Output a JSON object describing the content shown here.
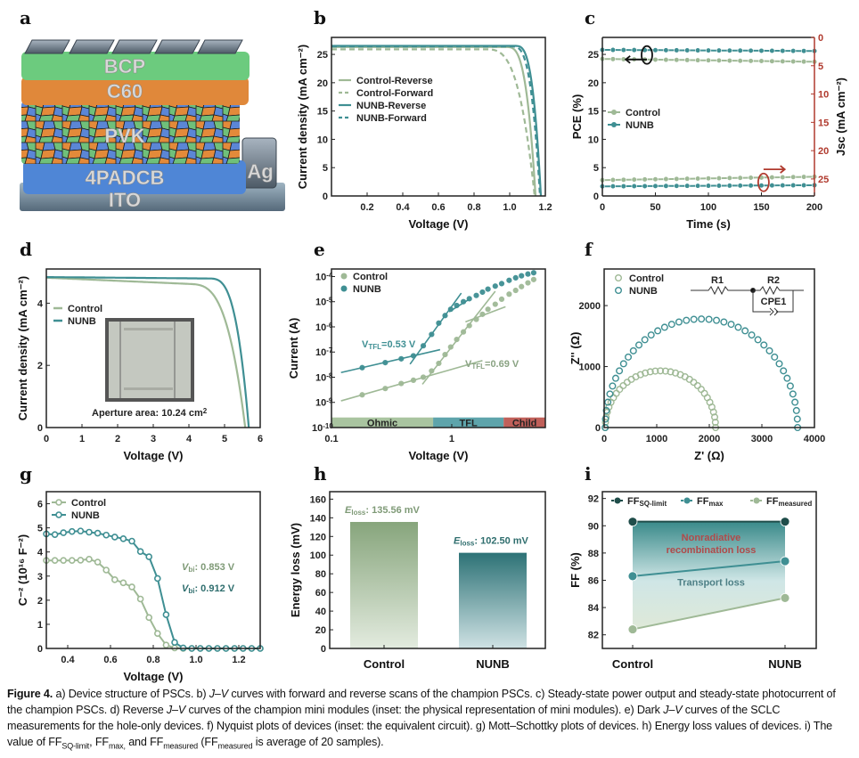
{
  "colors": {
    "control": "#9fb996",
    "nunb": "#3f8f93",
    "dark_nunb": "#2f6e6e",
    "red_axis": "#b03a2e",
    "ohmic": "#a9c4a0",
    "tfl": "#5ea4ab",
    "child": "#c0605a",
    "sq": "#1f4d4a"
  },
  "panels": {
    "a": {
      "letter": "a",
      "layers": [
        "BCP",
        "C60",
        "PVK",
        "4PADCB",
        "ITO",
        "Ag"
      ]
    },
    "b": {
      "letter": "b"
    },
    "c": {
      "letter": "c"
    },
    "d": {
      "letter": "d",
      "inset_caption": "Aperture area: 10.24 cm",
      "inset_caption_sup": "2"
    },
    "e": {
      "letter": "e"
    },
    "f": {
      "letter": "f",
      "circuit": {
        "r1": "R1",
        "r2": "R2",
        "cpe": "CPE1"
      }
    },
    "g": {
      "letter": "g"
    },
    "h": {
      "letter": "h"
    },
    "i": {
      "letter": "i"
    }
  },
  "chart_data": [
    {
      "id": "b",
      "type": "line",
      "xlabel": "Voltage (V)",
      "ylabel": "Current density (mA cm⁻²)",
      "xlim": [
        0,
        1.2
      ],
      "ylim": [
        0,
        28
      ],
      "xticks": [
        0.2,
        0.4,
        0.6,
        0.8,
        1.0,
        1.2
      ],
      "xtick_labels": [
        "0.2",
        "0.4",
        "0.6",
        "0.8",
        "1.0",
        "1.2"
      ],
      "yticks": [
        0,
        5,
        10,
        15,
        20,
        25
      ],
      "legend_position": "upper-left",
      "series": [
        {
          "name": "Control-Reverse",
          "style": "solid",
          "color": "control",
          "jsc": 26.3,
          "voc": 1.145,
          "knee": 0.98
        },
        {
          "name": "Control-Forward",
          "style": "dashed",
          "color": "control",
          "jsc": 25.9,
          "voc": 1.14,
          "knee": 0.86
        },
        {
          "name": "NUNB-Reverse",
          "style": "solid",
          "color": "nunb",
          "jsc": 26.5,
          "voc": 1.175,
          "knee": 1.03
        },
        {
          "name": "NUNB-Forward",
          "style": "dashed",
          "color": "nunb",
          "jsc": 26.4,
          "voc": 1.17,
          "knee": 1.01
        }
      ]
    },
    {
      "id": "c",
      "type": "line",
      "xlabel": "Time (s)",
      "ylabel": "PCE (%)",
      "ylabel_right": "Jsc (mA cm⁻²)",
      "xlim": [
        0,
        200
      ],
      "ylim": [
        0,
        28
      ],
      "ylim_right": [
        28,
        0
      ],
      "xticks": [
        0,
        50,
        100,
        150,
        200
      ],
      "yticks": [
        0,
        5,
        10,
        15,
        20,
        25
      ],
      "yticks_right": [
        0,
        5,
        10,
        15,
        20,
        25
      ],
      "legend_position": "middle-left",
      "series": [
        {
          "name": "Control",
          "axis": "left",
          "color": "control",
          "start": 24.2,
          "end": 23.7
        },
        {
          "name": "NUNB",
          "axis": "left",
          "color": "nunb",
          "start": 25.8,
          "end": 25.6
        },
        {
          "name": "Control",
          "axis": "right",
          "color": "control",
          "start": 25.2,
          "end": 24.6
        },
        {
          "name": "NUNB",
          "axis": "right",
          "color": "nunb",
          "start": 26.3,
          "end": 26.1
        }
      ]
    },
    {
      "id": "d",
      "type": "line",
      "xlabel": "Voltage (V)",
      "ylabel": "Current density (mA cm⁻²)",
      "xlim": [
        0,
        6
      ],
      "ylim": [
        0,
        5.1
      ],
      "xticks": [
        0,
        1,
        2,
        3,
        4,
        5,
        6
      ],
      "yticks": [
        0,
        2,
        4
      ],
      "legend_position": "upper-left",
      "series": [
        {
          "name": "Control",
          "color": "control",
          "jsc": 4.82,
          "voc": 5.58,
          "knee": 4.0,
          "slope": 0.05
        },
        {
          "name": "NUNB",
          "color": "nunb",
          "jsc": 4.84,
          "voc": 5.68,
          "knee": 4.55,
          "slope": 0.01
        }
      ]
    },
    {
      "id": "e",
      "type": "scatter",
      "xlabel": "Voltage (V)",
      "ylabel": "Current (A)",
      "xscale": "log",
      "yscale": "log",
      "xlim": [
        0.1,
        6
      ],
      "ylim_exp": [
        -10,
        -3.7
      ],
      "xticks": [
        0.1,
        1
      ],
      "xtick_labels": [
        "0.1",
        "1"
      ],
      "yticks_exp": [
        -10,
        -9,
        -8,
        -7,
        -6,
        -5,
        -4
      ],
      "legend_position": "upper-left",
      "regions": [
        {
          "name": "Ohmic",
          "from": 0.1,
          "to": 0.7,
          "color": "ohmic"
        },
        {
          "name": "TFL",
          "from": 0.7,
          "to": 2.7,
          "color": "tfl"
        },
        {
          "name": "Child",
          "from": 2.7,
          "to": 6,
          "color": "child"
        }
      ],
      "annotations": [
        {
          "text": "V",
          "sub": "TFL",
          "rest": "=0.53 V",
          "series": "NUNB"
        },
        {
          "text": "V",
          "sub": "TFL",
          "rest": "=0.69 V",
          "series": "Control"
        }
      ],
      "series": [
        {
          "name": "Control",
          "color": "control",
          "vtfl": 0.69,
          "x": [
            0.18,
            0.28,
            0.38,
            0.48,
            0.58,
            0.68,
            0.78,
            0.88,
            0.98,
            1.1,
            1.25,
            1.4,
            1.6,
            1.8,
            2.0,
            2.3,
            2.6,
            3.0,
            3.4,
            3.8,
            4.3,
            4.8
          ],
          "y_exp": [
            -8.7,
            -8.45,
            -8.25,
            -8.12,
            -8.0,
            -7.75,
            -7.45,
            -7.1,
            -6.8,
            -6.5,
            -6.2,
            -5.95,
            -5.7,
            -5.5,
            -5.3,
            -5.1,
            -4.9,
            -4.7,
            -4.55,
            -4.4,
            -4.25,
            -4.12
          ]
        },
        {
          "name": "NUNB",
          "color": "nunb",
          "vtfl": 0.53,
          "x": [
            0.18,
            0.28,
            0.38,
            0.48,
            0.58,
            0.68,
            0.78,
            0.88,
            0.98,
            1.1,
            1.25,
            1.4,
            1.6,
            1.8,
            2.0,
            2.3,
            2.6,
            3.0,
            3.4,
            3.8,
            4.3,
            4.8
          ],
          "y_exp": [
            -7.62,
            -7.42,
            -7.27,
            -7.15,
            -6.75,
            -6.3,
            -5.85,
            -5.55,
            -5.3,
            -5.15,
            -5.0,
            -4.88,
            -4.75,
            -4.62,
            -4.5,
            -4.38,
            -4.28,
            -4.15,
            -4.05,
            -3.97,
            -3.9,
            -3.85
          ]
        }
      ]
    },
    {
      "id": "f",
      "type": "scatter",
      "xlabel": "Z' (Ω)",
      "ylabel": "Z'' (Ω)",
      "xlim": [
        0,
        4000
      ],
      "ylim": [
        0,
        2600
      ],
      "xticks": [
        0,
        1000,
        2000,
        3000,
        4000
      ],
      "yticks": [
        0,
        1000,
        2000
      ],
      "legend_position": "upper-left",
      "series": [
        {
          "name": "Control",
          "color": "control",
          "r_start": 20,
          "r_end": 2120,
          "peak": 930
        },
        {
          "name": "NUNB",
          "color": "nunb",
          "r_start": 20,
          "r_end": 3680,
          "peak": 1780
        }
      ]
    },
    {
      "id": "g",
      "type": "line",
      "xlabel": "Voltage (V)",
      "ylabel": "C⁻² (10¹⁶ F⁻²)",
      "xlim": [
        0.3,
        1.3
      ],
      "ylim": [
        0,
        6.5
      ],
      "xticks": [
        0.4,
        0.6,
        0.8,
        1.0,
        1.2
      ],
      "xtick_labels": [
        "0.4",
        "0.6",
        "0.8",
        "1.0",
        "1.2"
      ],
      "yticks": [
        0,
        1,
        2,
        3,
        4,
        5,
        6
      ],
      "legend_position": "upper-left",
      "annotations": [
        {
          "text": "V",
          "sub": "bi",
          "rest": ": 0.853 V",
          "series": "Control"
        },
        {
          "text": "V",
          "sub": "bi",
          "rest": ": 0.912 V",
          "series": "NUNB"
        }
      ],
      "series": [
        {
          "name": "Control",
          "color": "control",
          "x": [
            0.3,
            0.34,
            0.38,
            0.42,
            0.46,
            0.5,
            0.54,
            0.58,
            0.62,
            0.66,
            0.7,
            0.74,
            0.78,
            0.82,
            0.86,
            0.9,
            0.94,
            0.98,
            1.02,
            1.06,
            1.1,
            1.14,
            1.18,
            1.22,
            1.26,
            1.3
          ],
          "y": [
            3.65,
            3.65,
            3.65,
            3.65,
            3.66,
            3.7,
            3.58,
            3.25,
            2.85,
            2.72,
            2.55,
            2.05,
            1.28,
            0.62,
            0.14,
            0.02,
            0,
            0,
            0,
            0,
            0,
            0,
            0,
            0,
            0,
            0
          ]
        },
        {
          "name": "NUNB",
          "color": "nunb",
          "x": [
            0.3,
            0.34,
            0.38,
            0.42,
            0.46,
            0.5,
            0.54,
            0.58,
            0.62,
            0.66,
            0.7,
            0.74,
            0.78,
            0.82,
            0.86,
            0.9,
            0.94,
            0.98,
            1.02,
            1.06,
            1.1,
            1.14,
            1.18,
            1.22,
            1.26,
            1.3
          ],
          "y": [
            4.75,
            4.72,
            4.8,
            4.85,
            4.87,
            4.82,
            4.78,
            4.7,
            4.62,
            4.55,
            4.45,
            4.02,
            3.8,
            2.9,
            1.4,
            0.25,
            0.02,
            0,
            0,
            0,
            0,
            0,
            0,
            0,
            0,
            0
          ]
        }
      ]
    },
    {
      "id": "h",
      "type": "bar",
      "xlabel": "",
      "ylabel": "Energy loss (mV)",
      "categories": [
        "Control",
        "NUNB"
      ],
      "values": [
        135.56,
        102.5
      ],
      "ylim": [
        0,
        168
      ],
      "yticks": [
        0,
        20,
        40,
        60,
        80,
        100,
        120,
        140,
        160
      ],
      "data_labels": [
        {
          "italic": "E",
          "sub": "loss",
          "rest": ": 135.56 mV"
        },
        {
          "italic": "E",
          "sub": "loss",
          "rest": ": 102.50 mV"
        }
      ]
    },
    {
      "id": "i",
      "type": "line",
      "xlabel": "",
      "ylabel": "FF (%)",
      "categories": [
        "Control",
        "NUNB"
      ],
      "ylim": [
        81,
        92.5
      ],
      "yticks": [
        82,
        84,
        86,
        88,
        90,
        92
      ],
      "legend_position": "top",
      "series": [
        {
          "name": "FF",
          "sub": "SQ-limit",
          "color": "sq",
          "values": [
            90.3,
            90.3
          ]
        },
        {
          "name": "FF",
          "sub": "max",
          "color": "nunb",
          "values": [
            86.3,
            87.4
          ]
        },
        {
          "name": "FF",
          "sub": "measured",
          "color": "control",
          "values": [
            82.4,
            84.7
          ]
        }
      ],
      "annotations": [
        {
          "text": "Nonradiative",
          "text2": "recombination loss",
          "color": "#b04a4a"
        },
        {
          "text": "Transport loss",
          "color": "#4d7f85"
        }
      ]
    }
  ],
  "caption": {
    "label": "Figure 4.",
    "segments": [
      {
        "t": " a) Device structure of PSCs. b) "
      },
      {
        "t": "J",
        "i": true
      },
      {
        "t": "–"
      },
      {
        "t": "V",
        "i": true
      },
      {
        "t": " curves with forward and reverse scans of the champion PSCs. c) Steady-state power output and steady-state photocurrent of the champion PSCs. d) Reverse "
      },
      {
        "t": "J",
        "i": true
      },
      {
        "t": "–"
      },
      {
        "t": "V",
        "i": true
      },
      {
        "t": " curves of the champion mini modules (inset: the physical representation of mini modules). e) Dark "
      },
      {
        "t": "J",
        "i": true
      },
      {
        "t": "–"
      },
      {
        "t": "V",
        "i": true
      },
      {
        "t": " curves of the SCLC measurements for the hole-only devices. f) Nyquist plots of devices (inset: the equivalent circuit). g) Mott–Schottky plots of devices. h) Energy loss values of devices. i) The value of FF"
      },
      {
        "t": "SQ-limit",
        "sub": true
      },
      {
        "t": ", FF"
      },
      {
        "t": "max,",
        "sub": true
      },
      {
        "t": " and FF"
      },
      {
        "t": "measured",
        "sub": true
      },
      {
        "t": " (FF"
      },
      {
        "t": "measured",
        "sub": true
      },
      {
        "t": " is average of 20 samples)."
      }
    ]
  }
}
